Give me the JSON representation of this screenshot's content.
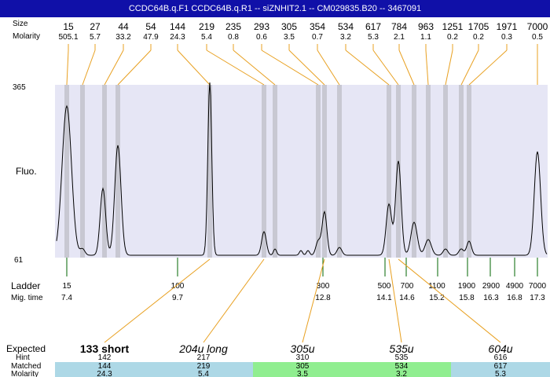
{
  "title": "CCDC64B.q.F1  CCDC64B.q.R1 -- siZNHIT2.1 -- CM029835.B20 -- 3467091",
  "labels": {
    "size": "Size",
    "molarity": "Molarity",
    "fluo": "Fluo.",
    "ladder": "Ladder",
    "mig_time": "Mig. time",
    "expected": "Expected",
    "hint": "Hint",
    "matched": "Matched",
    "molarity_bottom": "Molarity"
  },
  "colors": {
    "title_bar": "#1010a8",
    "plot_bg": "#e6e6f5",
    "band": "#c8c8d2",
    "connector": "#e8a020",
    "ladder_tick": "#006400",
    "row_blue": "#add8e6",
    "row_green": "#90ee90"
  },
  "chart_data": {
    "type": "line",
    "y_axis": {
      "max_label": "365",
      "min_label": "61"
    },
    "peaks": [
      {
        "size": "15",
        "molarity": "505.1"
      },
      {
        "size": "27",
        "molarity": "5.7"
      },
      {
        "size": "44",
        "molarity": "33.2"
      },
      {
        "size": "54",
        "molarity": "47.9"
      },
      {
        "size": "144",
        "molarity": "24.3"
      },
      {
        "size": "219",
        "molarity": "5.4"
      },
      {
        "size": "235",
        "molarity": "0.8"
      },
      {
        "size": "293",
        "molarity": "0.6"
      },
      {
        "size": "305",
        "molarity": "3.5"
      },
      {
        "size": "354",
        "molarity": "0.7"
      },
      {
        "size": "534",
        "molarity": "3.2"
      },
      {
        "size": "617",
        "molarity": "5.3"
      },
      {
        "size": "784",
        "molarity": "2.1"
      },
      {
        "size": "963",
        "molarity": "1.1"
      },
      {
        "size": "1251",
        "molarity": "0.2"
      },
      {
        "size": "1705",
        "molarity": "0.2"
      },
      {
        "size": "1971",
        "molarity": "0.3"
      },
      {
        "size": "7000",
        "molarity": "0.5"
      }
    ],
    "ladder": [
      {
        "size": "15",
        "time": "7.4"
      },
      {
        "size": "100",
        "time": "9.7"
      },
      {
        "size": "300",
        "time": "12.8"
      },
      {
        "size": "500",
        "time": "14.1"
      },
      {
        "size": "700",
        "time": "14.6"
      },
      {
        "size": "1100",
        "time": "15.2"
      },
      {
        "size": "1900",
        "time": "15.8"
      },
      {
        "size": "2900",
        "time": "16.3"
      },
      {
        "size": "4900",
        "time": "16.8"
      },
      {
        "size": "7000",
        "time": "17.3"
      }
    ],
    "expected": [
      {
        "label": "133 short",
        "hint": "142",
        "matched": "144",
        "molarity": "24.3",
        "color": "blue"
      },
      {
        "label": "204u long",
        "hint": "217",
        "matched": "219",
        "molarity": "5.4",
        "color": "blue"
      },
      {
        "label": "305u",
        "hint": "310",
        "matched": "305",
        "molarity": "3.5",
        "color": "green"
      },
      {
        "label": "535u",
        "hint": "535",
        "matched": "534",
        "molarity": "3.2",
        "color": "green"
      },
      {
        "label": "604u",
        "hint": "616",
        "matched": "617",
        "molarity": "5.3",
        "color": "blue"
      }
    ]
  }
}
